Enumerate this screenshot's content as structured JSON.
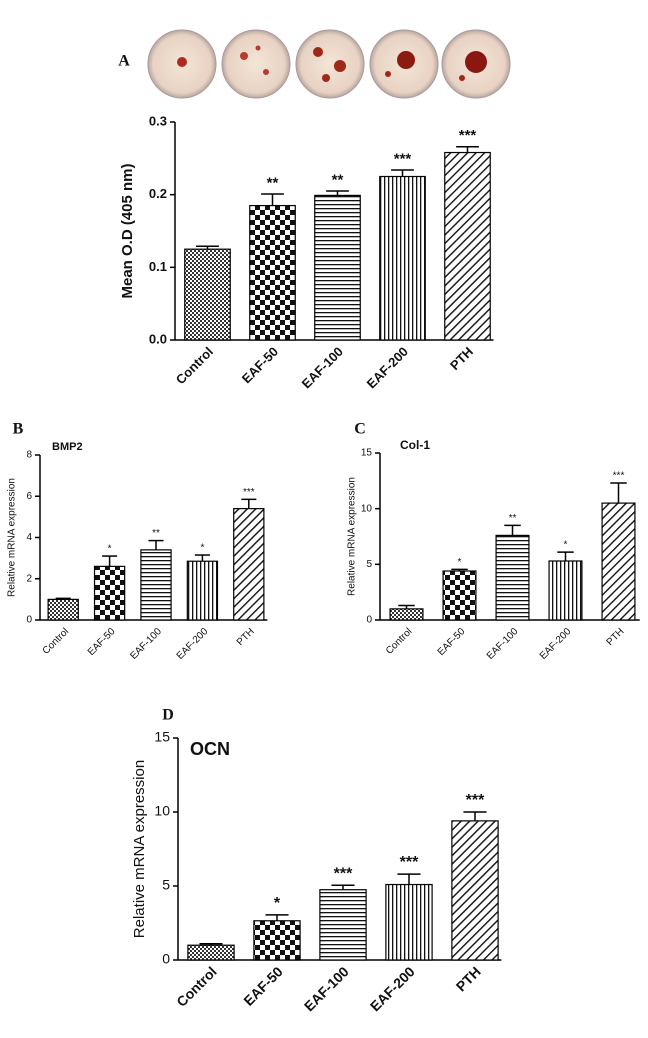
{
  "chart_data": [
    {
      "type": "bar",
      "panel": "A",
      "ylabel": "Mean O.D (405 nm)",
      "categories": [
        "Control",
        "EAF-50",
        "EAF-100",
        "EAF-200",
        "PTH"
      ],
      "values": [
        0.125,
        0.185,
        0.199,
        0.225,
        0.258
      ],
      "errors": [
        0.004,
        0.016,
        0.006,
        0.009,
        0.008
      ],
      "annotations": [
        null,
        "**",
        "**",
        "***",
        "***"
      ],
      "ylim": [
        0,
        0.3
      ],
      "yticks": [
        {
          "value": 0,
          "label": "0.0"
        },
        0.1,
        0.2,
        0.3
      ]
    },
    {
      "type": "bar",
      "panel": "B",
      "title": "BMP2",
      "ylabel": "Relative mRNA expression",
      "categories": [
        "Control",
        "EAF-50",
        "EAF-100",
        "EAF-200",
        "PTH"
      ],
      "values": [
        1.0,
        2.6,
        3.4,
        2.85,
        5.4
      ],
      "errors": [
        0.05,
        0.5,
        0.45,
        0.3,
        0.45
      ],
      "annotations": [
        null,
        "*",
        "**",
        "*",
        "***"
      ],
      "ylim": [
        0,
        8
      ],
      "yticks": [
        0,
        2,
        4,
        6,
        8
      ]
    },
    {
      "type": "bar",
      "panel": "C",
      "title": "Col-1",
      "ylabel": "Relative mRNA expression",
      "categories": [
        "Control",
        "EAF-50",
        "EAF-100",
        "EAF-200",
        "PTH"
      ],
      "values": [
        1.0,
        4.4,
        7.6,
        5.3,
        10.5
      ],
      "errors": [
        0.3,
        0.15,
        0.9,
        0.8,
        1.8
      ],
      "annotations": [
        null,
        "*",
        "**",
        "*",
        "***"
      ],
      "ylim": [
        0,
        15
      ],
      "yticks": [
        0,
        5,
        10,
        15
      ]
    },
    {
      "type": "bar",
      "panel": "D",
      "title": "OCN",
      "ylabel": "Relative mRNA expression",
      "categories": [
        "Control",
        "EAF-50",
        "EAF-100",
        "EAF-200",
        "PTH"
      ],
      "values": [
        1.0,
        2.65,
        4.75,
        5.1,
        9.4
      ],
      "errors": [
        0.1,
        0.4,
        0.3,
        0.7,
        0.6
      ],
      "annotations": [
        null,
        "*",
        "***",
        "***",
        "***"
      ],
      "ylim": [
        0,
        15
      ],
      "yticks": [
        0,
        5,
        10,
        15
      ]
    }
  ]
}
